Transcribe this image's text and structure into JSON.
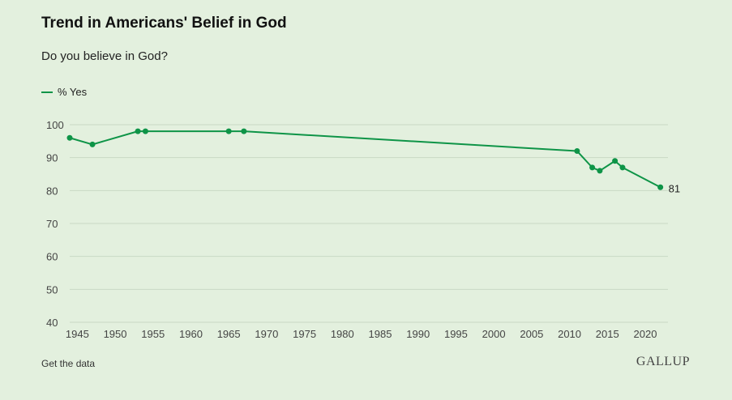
{
  "header": {
    "title": "Trend in Americans' Belief in God",
    "subtitle": "Do you believe in God?"
  },
  "footer": {
    "get_data_label": "Get the data",
    "brand": "GALLUP"
  },
  "colors": {
    "background": "#e3f0de",
    "series": "#0e9447",
    "grid": "#c9d9c4"
  },
  "chart_data": {
    "type": "line",
    "title": "Trend in Americans' Belief in God",
    "subtitle": "Do you believe in God?",
    "xlabel": "",
    "ylabel": "",
    "xlim": [
      1944,
      2023
    ],
    "ylim": [
      40,
      100
    ],
    "x_ticks": [
      1945,
      1950,
      1955,
      1960,
      1965,
      1970,
      1975,
      1980,
      1985,
      1990,
      1995,
      2000,
      2005,
      2010,
      2015,
      2020
    ],
    "y_ticks": [
      40,
      50,
      60,
      70,
      80,
      90,
      100
    ],
    "grid": true,
    "legend_position": "top-left",
    "series": [
      {
        "name": "% Yes",
        "x": [
          1944,
          1947,
          1953,
          1954,
          1965,
          1967,
          2011,
          2013,
          2014,
          2016,
          2017,
          2022
        ],
        "values": [
          96,
          94,
          98,
          98,
          98,
          98,
          92,
          87,
          86,
          89,
          87,
          81
        ]
      }
    ],
    "annotations": [
      {
        "x": 2022,
        "y": 81,
        "text": "81"
      }
    ]
  }
}
